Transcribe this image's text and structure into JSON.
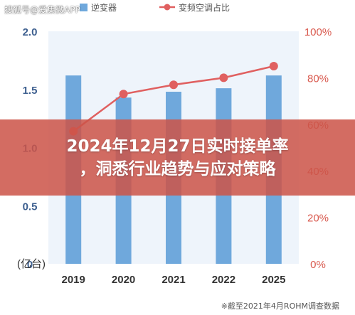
{
  "watermark": "搜狐号@爱集微APP",
  "banner": {
    "line1": "2024年12月27日实时接单率",
    "line2": "，洞悉行业趋势与应对策略"
  },
  "source_note": "※截至2021年4月ROHM调查数据",
  "chart_data": {
    "type": "bar+line",
    "categories": [
      "2019",
      "2020",
      "2021",
      "2022",
      "2025"
    ],
    "series": [
      {
        "name": "逆变器",
        "kind": "bar",
        "axis": "left",
        "color": "#6fa8dc",
        "values": [
          1.62,
          1.43,
          1.48,
          1.51,
          1.62
        ]
      },
      {
        "name": "变频空调占比",
        "kind": "line",
        "axis": "right",
        "color": "#e06060",
        "values": [
          57,
          73,
          77,
          80,
          85
        ]
      }
    ],
    "y_left": {
      "label": "(亿台)",
      "ticks": [
        "0",
        "0.5",
        "1.0",
        "1.5",
        "2.0"
      ],
      "range": [
        0,
        2.0
      ]
    },
    "y_right": {
      "ticks": [
        "0%",
        "20%",
        "40%",
        "60%",
        "80%",
        "100%"
      ],
      "range": [
        0,
        100
      ]
    },
    "legend_position": "top",
    "grid": false
  }
}
